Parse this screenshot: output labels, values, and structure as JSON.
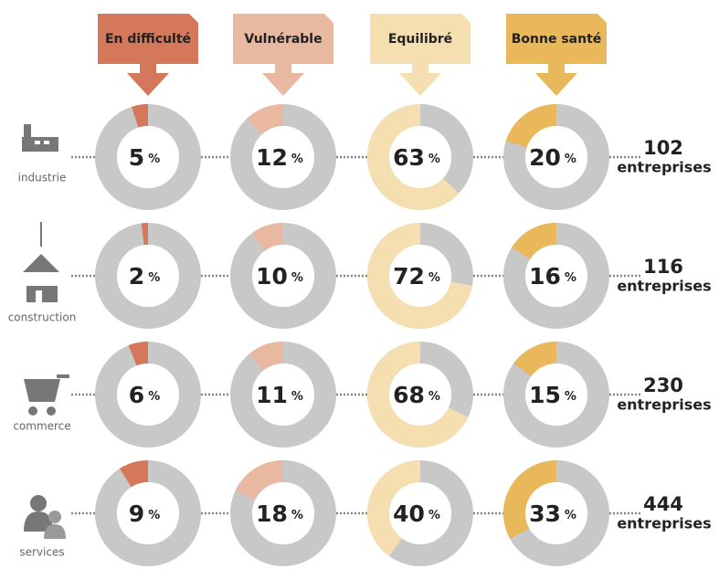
{
  "chart_data": {
    "type": "donut",
    "categories": [
      "En difficulté",
      "Vulnérable",
      "Equilibré",
      "Bonne santé"
    ],
    "colors": [
      "#d4775a",
      "#e8b8a0",
      "#f5dfb0",
      "#e8b85a"
    ],
    "track_color": "#c8c8c8",
    "unit": "%",
    "count_unit": "entreprises",
    "series": [
      {
        "name": "industrie",
        "values": [
          5,
          12,
          63,
          20
        ],
        "count": 102
      },
      {
        "name": "construction",
        "values": [
          2,
          10,
          72,
          16
        ],
        "count": 116
      },
      {
        "name": "commerce",
        "values": [
          6,
          11,
          68,
          15
        ],
        "count": 230
      },
      {
        "name": "services",
        "values": [
          9,
          18,
          40,
          33
        ],
        "count": 444
      }
    ]
  }
}
